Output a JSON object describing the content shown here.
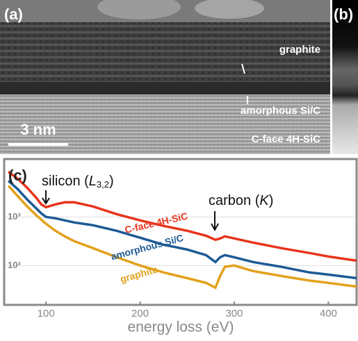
{
  "panel_a": {
    "label": "(a)",
    "graphite": "graphite",
    "amorphous": "amorphous Si/C",
    "substrate": "C-face 4H-SiC",
    "scale_bar": "3 nm"
  },
  "panel_b": {
    "label": "(b)"
  },
  "chart_data": {
    "type": "line",
    "panel_label": "(c)",
    "xlabel": "energy loss (eV)",
    "annotations": {
      "silicon": {
        "text": "silicon (",
        "symbol": "L",
        "subscript": "3,2",
        "close": ")"
      },
      "carbon": {
        "text": "carbon (",
        "symbol": "K",
        "close": ")"
      }
    },
    "x": [
      60,
      70,
      80,
      90,
      95,
      100,
      110,
      120,
      130,
      150,
      175,
      200,
      225,
      250,
      270,
      280,
      285,
      290,
      300,
      320,
      350,
      380,
      400,
      430
    ],
    "series": [
      {
        "name": "C-face 4H-SiC",
        "color": "#e8341c",
        "values": [
          8490,
          6100,
          3980,
          2430,
          1810,
          1580,
          1810,
          2000,
          2000,
          1640,
          1140,
          849,
          652,
          518,
          411,
          338,
          361,
          398,
          361,
          296,
          228,
          181,
          153,
          126
        ]
      },
      {
        "name": "amorphous Si/C",
        "color": "#1d5a96",
        "values": [
          5530,
          3730,
          2280,
          1480,
          1180,
          1000,
          936,
          849,
          769,
          674,
          518,
          373,
          268,
          213,
          164,
          118,
          148,
          164,
          148,
          118,
          94,
          72,
          65,
          55
        ]
      },
      {
        "name": "graphite",
        "color": "#e2a11b",
        "values": [
          4390,
          2680,
          1640,
          1070,
          877,
          720,
          518,
          398,
          316,
          228,
          148,
          100,
          72,
          55,
          44,
          35,
          61,
          94,
          100,
          77,
          61,
          49,
          44,
          37
        ]
      }
    ],
    "xlim": [
      60,
      430
    ],
    "xticks": [
      100,
      200,
      300,
      400
    ],
    "ylim": [
      15,
      15000
    ],
    "log_y": true,
    "yticks": [
      {
        "value": 100,
        "label": "10²"
      },
      {
        "value": 1000,
        "label": "10³"
      }
    ],
    "grid": true
  }
}
